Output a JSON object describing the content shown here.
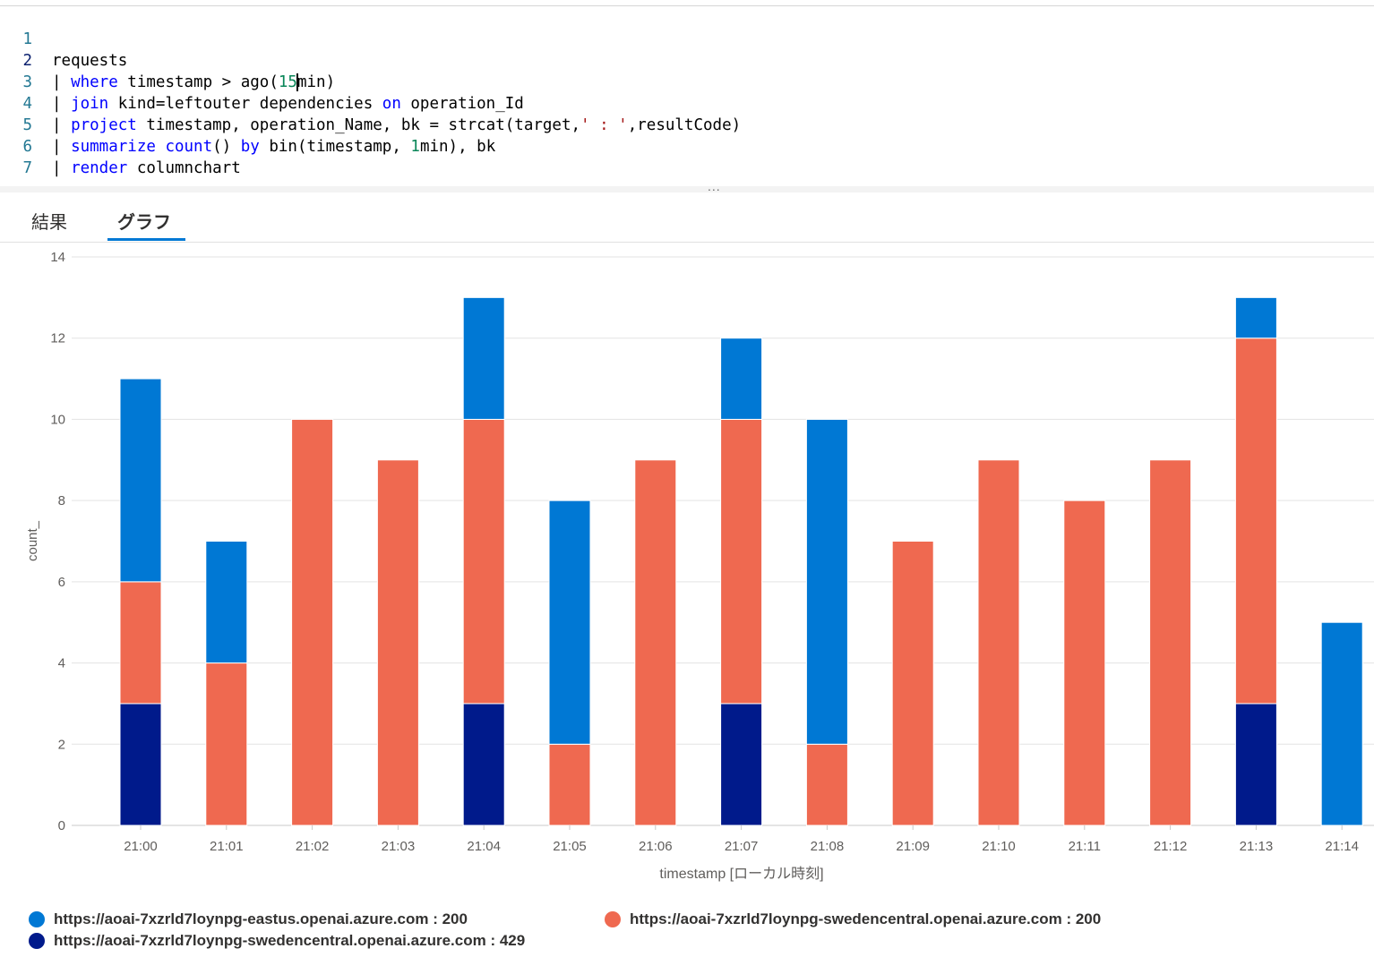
{
  "editor": {
    "lines": [
      {
        "n": "1",
        "segs": [
          {
            "t": "requests"
          }
        ]
      },
      {
        "n": "2",
        "segs": [
          {
            "t": "| "
          },
          {
            "t": "where",
            "c": "kw"
          },
          {
            "t": " timestamp > ago("
          },
          {
            "t": "15",
            "c": "num"
          },
          {
            "t": "min)"
          }
        ]
      },
      {
        "n": "3",
        "segs": [
          {
            "t": "| "
          },
          {
            "t": "join",
            "c": "kw"
          },
          {
            "t": " kind=leftouter dependencies "
          },
          {
            "t": "on",
            "c": "kw"
          },
          {
            "t": " operation_Id"
          }
        ]
      },
      {
        "n": "4",
        "segs": [
          {
            "t": "| "
          },
          {
            "t": "project",
            "c": "kw"
          },
          {
            "t": " timestamp, operation_Name, bk = strcat(target,"
          },
          {
            "t": "' : '",
            "c": "str"
          },
          {
            "t": ",resultCode)"
          }
        ]
      },
      {
        "n": "5",
        "segs": [
          {
            "t": "| "
          },
          {
            "t": "summarize",
            "c": "kw"
          },
          {
            "t": " "
          },
          {
            "t": "count",
            "c": "kw"
          },
          {
            "t": "() "
          },
          {
            "t": "by",
            "c": "kw"
          },
          {
            "t": " bin(timestamp, "
          },
          {
            "t": "1",
            "c": "num"
          },
          {
            "t": "min), bk"
          }
        ]
      },
      {
        "n": "6",
        "segs": [
          {
            "t": "| "
          },
          {
            "t": "render",
            "c": "kw"
          },
          {
            "t": " columnchart "
          }
        ]
      },
      {
        "n": "7",
        "segs": []
      }
    ],
    "splitter_label": "..."
  },
  "tabs": [
    {
      "label": "結果",
      "active": false
    },
    {
      "label": "グラフ",
      "active": true
    }
  ],
  "colors": {
    "eastus_200": "#0078d4",
    "sweden_200": "#ef6950",
    "sweden_429": "#001a8b",
    "accent": "#0078d4"
  },
  "chart_data": {
    "type": "bar",
    "stacked": true,
    "categories": [
      "21:00",
      "21:01",
      "21:02",
      "21:03",
      "21:04",
      "21:05",
      "21:06",
      "21:07",
      "21:08",
      "21:09",
      "21:10",
      "21:11",
      "21:12",
      "21:13",
      "21:14"
    ],
    "series": [
      {
        "name": "https://aoai-7xzrld7loynpg-swedencentral.openai.azure.com : 429",
        "color": "#001a8b",
        "values": [
          3,
          0,
          0,
          0,
          3,
          0,
          0,
          3,
          0,
          0,
          0,
          0,
          0,
          3,
          0
        ]
      },
      {
        "name": "https://aoai-7xzrld7loynpg-swedencentral.openai.azure.com : 200",
        "color": "#ef6950",
        "values": [
          3,
          4,
          10,
          9,
          7,
          2,
          9,
          7,
          2,
          7,
          9,
          8,
          9,
          9,
          0
        ]
      },
      {
        "name": "https://aoai-7xzrld7loynpg-eastus.openai.azure.com : 200",
        "color": "#0078d4",
        "values": [
          5,
          3,
          0,
          0,
          3,
          6,
          0,
          2,
          8,
          0,
          0,
          0,
          0,
          1,
          5
        ]
      }
    ],
    "xlabel": "timestamp [ローカル時刻]",
    "ylabel": "count_",
    "ylim": [
      0,
      14
    ],
    "yticks": [
      0,
      2,
      4,
      6,
      8,
      10,
      12,
      14
    ],
    "grid": true,
    "legend_position": "bottom"
  },
  "legend": [
    {
      "label": "https://aoai-7xzrld7loynpg-eastus.openai.azure.com : 200",
      "color": "#0078d4"
    },
    {
      "label": "https://aoai-7xzrld7loynpg-swedencentral.openai.azure.com : 200",
      "color": "#ef6950"
    },
    {
      "label": "https://aoai-7xzrld7loynpg-swedencentral.openai.azure.com : 429",
      "color": "#001a8b"
    }
  ]
}
